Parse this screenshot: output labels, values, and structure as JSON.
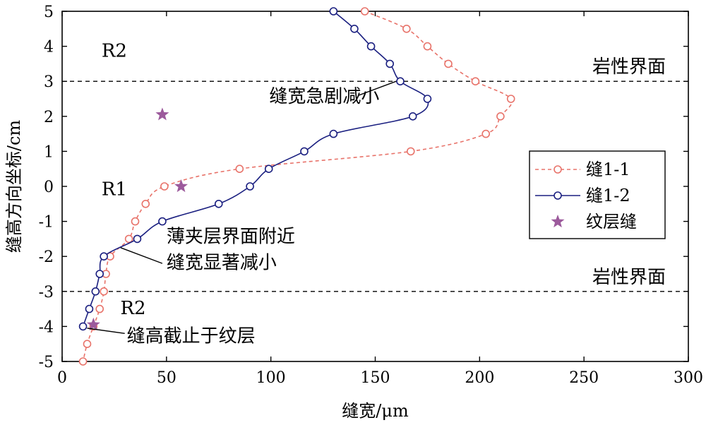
{
  "chart_data": {
    "type": "line",
    "xlabel": "缝宽/μm",
    "ylabel": "缝高方向坐标/cm",
    "xlim": [
      0,
      300
    ],
    "ylim": [
      -5,
      5
    ],
    "xticks": [
      0,
      50,
      100,
      150,
      200,
      250,
      300
    ],
    "yticks": [
      -5,
      -4,
      -3,
      -2,
      -1,
      0,
      1,
      2,
      3,
      4,
      5
    ],
    "grid": false,
    "legend_position": "right",
    "series": [
      {
        "name": "缝1-1",
        "color": "#e8736a",
        "line_style": "dashed",
        "marker": "circle",
        "points": [
          {
            "x": 145,
            "y": 5
          },
          {
            "x": 165,
            "y": 4.5
          },
          {
            "x": 175,
            "y": 4
          },
          {
            "x": 185,
            "y": 3.5
          },
          {
            "x": 198,
            "y": 3
          },
          {
            "x": 215,
            "y": 2.5
          },
          {
            "x": 210,
            "y": 2
          },
          {
            "x": 203,
            "y": 1.5
          },
          {
            "x": 167,
            "y": 1
          },
          {
            "x": 85,
            "y": 0.5
          },
          {
            "x": 49,
            "y": 0
          },
          {
            "x": 40,
            "y": -0.5
          },
          {
            "x": 35,
            "y": -1
          },
          {
            "x": 32,
            "y": -1.5
          },
          {
            "x": 23,
            "y": -2
          },
          {
            "x": 21,
            "y": -2.5
          },
          {
            "x": 20,
            "y": -3
          },
          {
            "x": 18,
            "y": -3.5
          },
          {
            "x": 15,
            "y": -4
          },
          {
            "x": 12,
            "y": -4.5
          },
          {
            "x": 10,
            "y": -5
          }
        ]
      },
      {
        "name": "缝1-2",
        "color": "#1a1f80",
        "line_style": "solid",
        "marker": "circle",
        "points": [
          {
            "x": 130,
            "y": 5
          },
          {
            "x": 140,
            "y": 4.5
          },
          {
            "x": 148,
            "y": 4
          },
          {
            "x": 157,
            "y": 3.5
          },
          {
            "x": 162,
            "y": 3
          },
          {
            "x": 175,
            "y": 2.5
          },
          {
            "x": 168,
            "y": 2
          },
          {
            "x": 130,
            "y": 1.5
          },
          {
            "x": 116,
            "y": 1
          },
          {
            "x": 99,
            "y": 0.5
          },
          {
            "x": 90,
            "y": 0
          },
          {
            "x": 75,
            "y": -0.5
          },
          {
            "x": 48,
            "y": -1
          },
          {
            "x": 36,
            "y": -1.5
          },
          {
            "x": 20,
            "y": -2
          },
          {
            "x": 18,
            "y": -2.5
          },
          {
            "x": 16,
            "y": -3
          },
          {
            "x": 13,
            "y": -3.5
          },
          {
            "x": 10,
            "y": -4
          }
        ]
      },
      {
        "name": "纹层缝",
        "color": "#9c5a9c",
        "marker": "star",
        "points": [
          {
            "x": 48,
            "y": 2.05
          },
          {
            "x": 57,
            "y": 0
          },
          {
            "x": 15,
            "y": -3.95
          }
        ]
      }
    ],
    "reference_lines": [
      {
        "axis": "y",
        "value": 3,
        "style": "dashed",
        "label": "岩性界面"
      },
      {
        "axis": "y",
        "value": -3,
        "style": "dashed",
        "label": "岩性界面"
      }
    ],
    "region_labels": [
      {
        "text": "R2",
        "x": 25,
        "y": 3.7
      },
      {
        "text": "R1",
        "x": 25,
        "y": -0.25
      },
      {
        "text": "R2",
        "x": 34,
        "y": -3.65
      }
    ],
    "annotations": [
      {
        "lines": [
          "缝宽急剧减小"
        ],
        "text_x": 152,
        "text_y": 2.4,
        "anchor": "end",
        "arrow_from": [
          142,
          2.6
        ],
        "arrow_to": [
          160,
          3.0
        ]
      },
      {
        "lines": [
          "薄夹层界面附近",
          "缝宽显著减小"
        ],
        "text_x": 50,
        "text_y": -1.6,
        "anchor": "start",
        "arrow_from": [
          48,
          -2.2
        ],
        "arrow_to": [
          28,
          -1.75
        ]
      },
      {
        "lines": [
          "缝高截止于纹层"
        ],
        "text_x": 31,
        "text_y": -4.45,
        "anchor": "start",
        "arrow_from": [
          30,
          -4.2
        ],
        "arrow_to": [
          12,
          -4.05
        ]
      }
    ]
  }
}
